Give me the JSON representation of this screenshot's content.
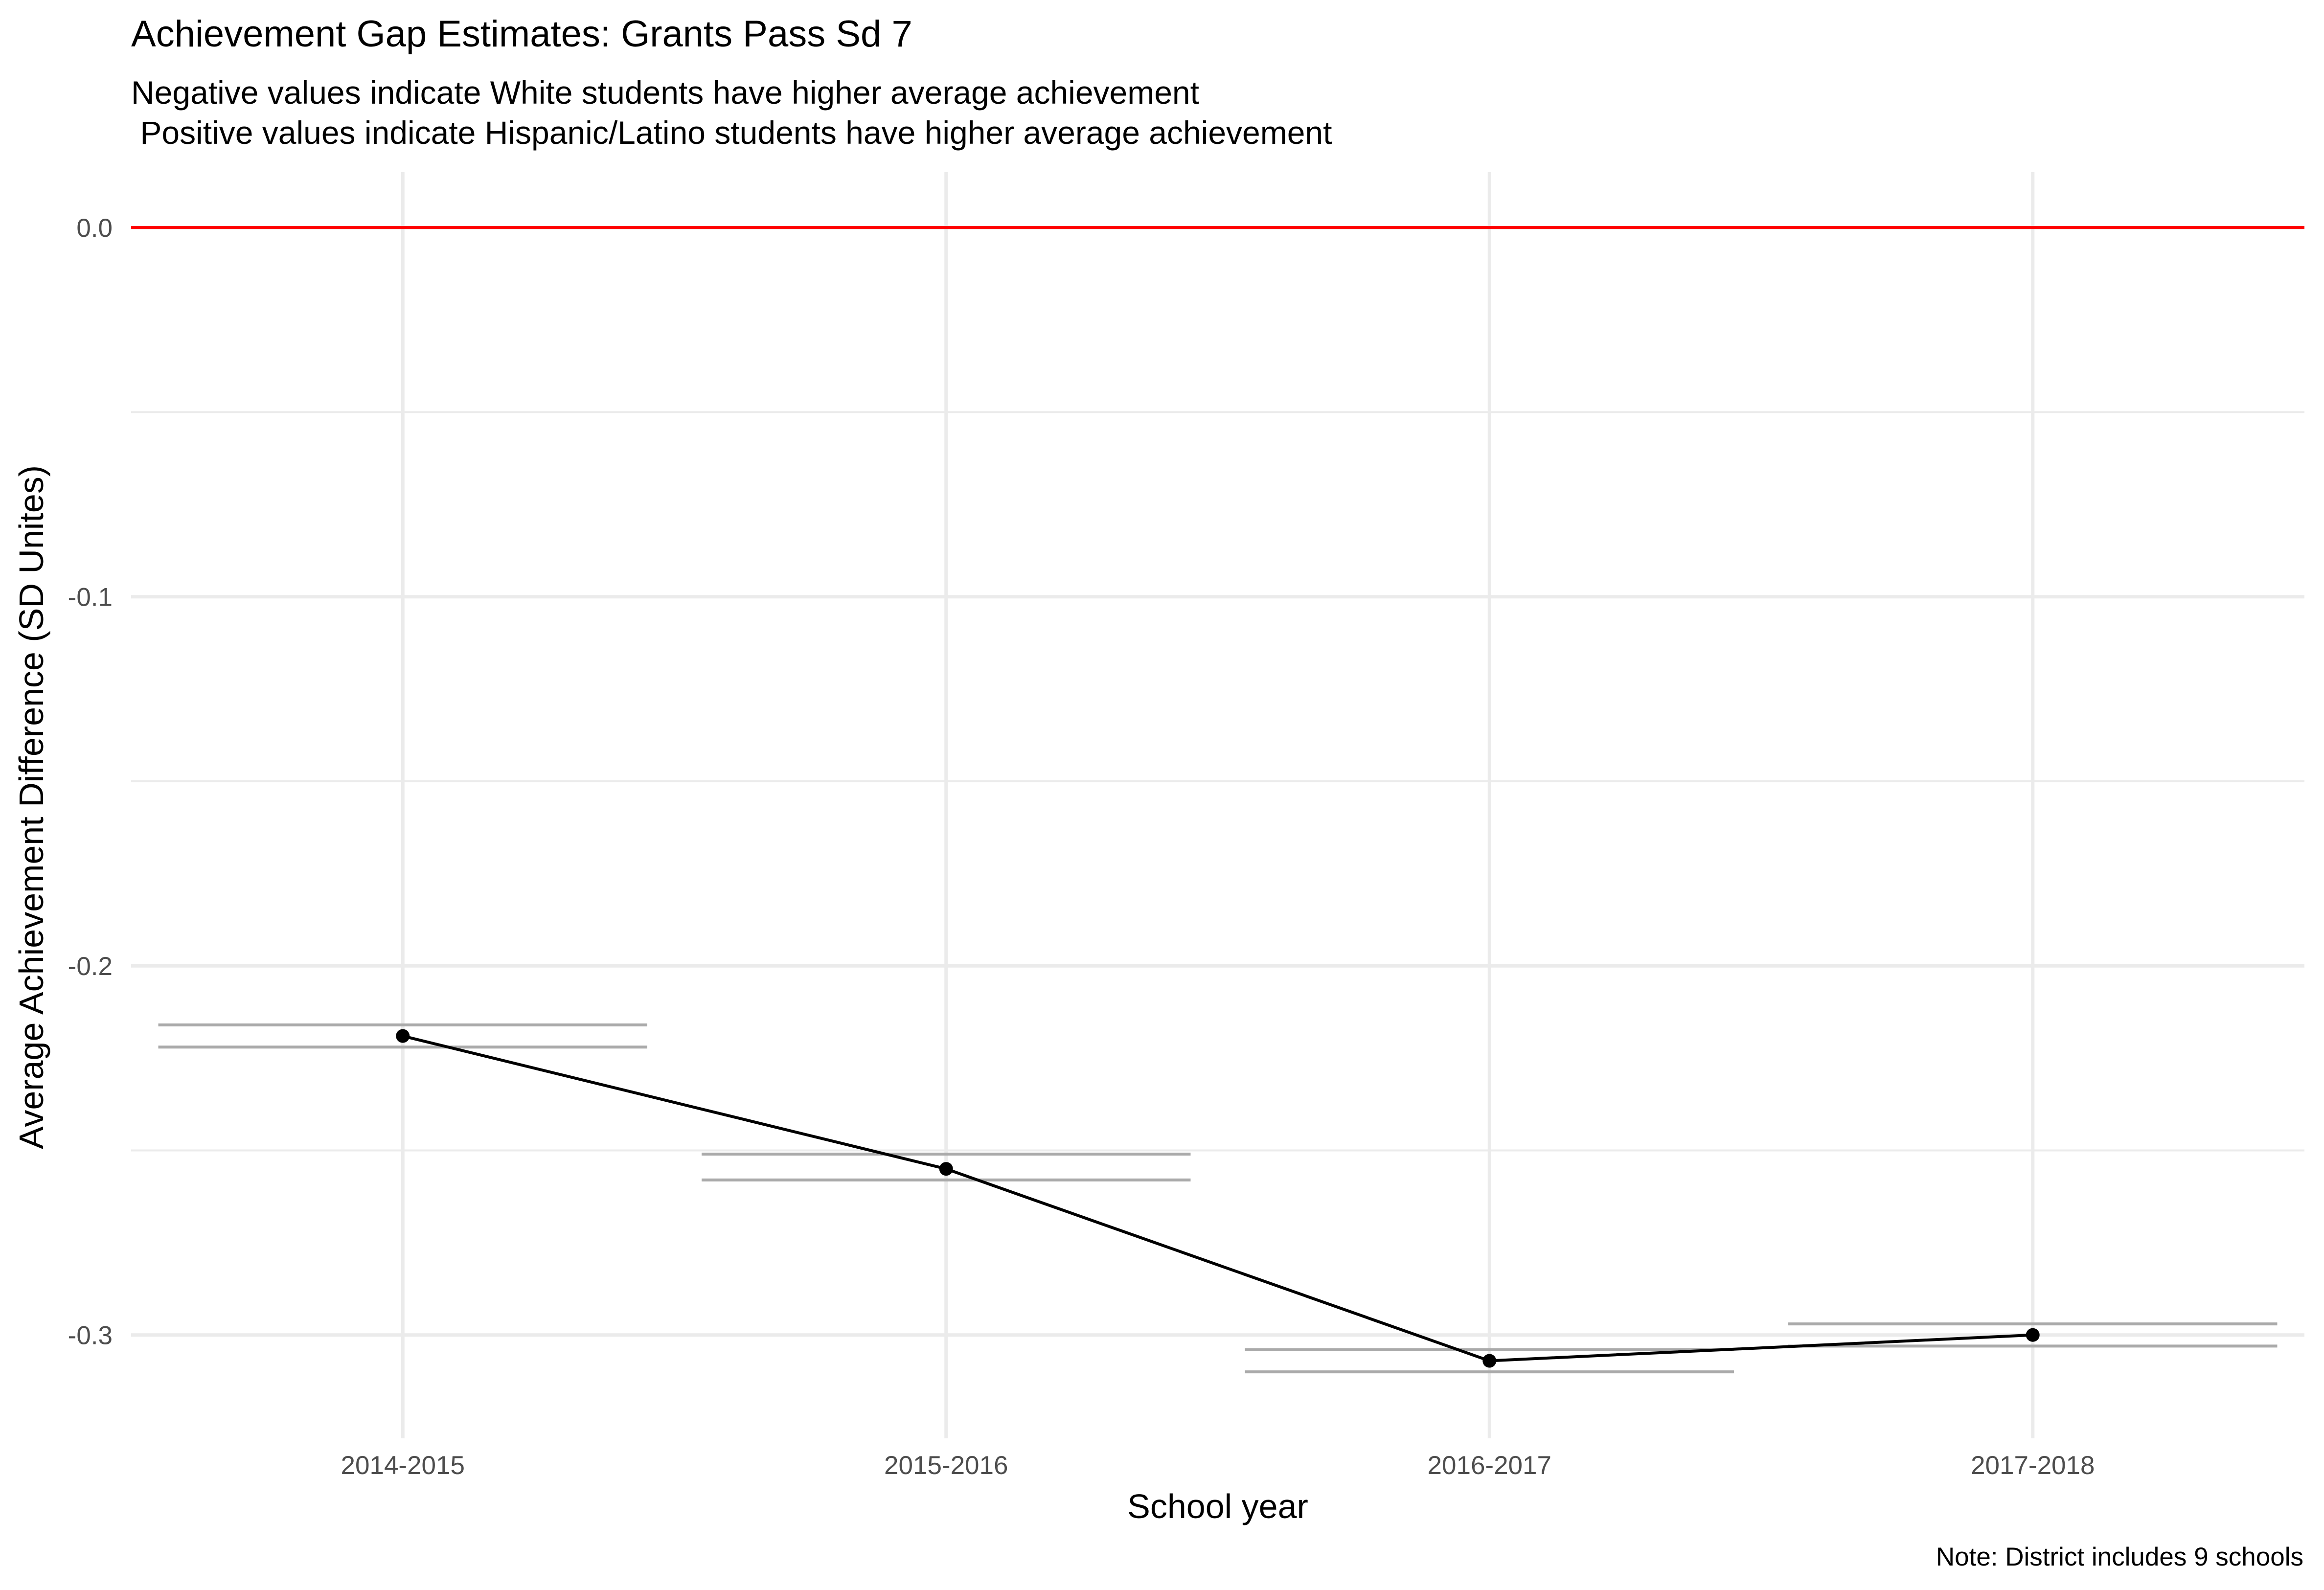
{
  "chart_data": {
    "type": "line",
    "title": "Achievement Gap Estimates: Grants Pass Sd 7",
    "subtitle_lines": [
      "Negative values indicate White students have higher average achievement",
      " Positive values indicate Hispanic/Latino students have higher average achievement"
    ],
    "xlabel": "School year",
    "ylabel": "Average Achievement Difference (SD Unites)",
    "caption": "Note: District includes 9 schools",
    "categories": [
      "2014-2015",
      "2015-2016",
      "2016-2017",
      "2017-2018"
    ],
    "series": [
      {
        "values": [
          -0.219,
          -0.255,
          -0.307,
          -0.3
        ]
      }
    ],
    "interval_bounds": [
      {
        "upper": -0.216,
        "lower": -0.222
      },
      {
        "upper": -0.251,
        "lower": -0.258
      },
      {
        "upper": -0.304,
        "lower": -0.31
      },
      {
        "upper": -0.297,
        "lower": -0.303
      }
    ],
    "reference_line": {
      "y": 0.0,
      "color": "#ff0000"
    },
    "y_ticks": [
      0.0,
      -0.1,
      -0.2,
      -0.3
    ],
    "y_tick_labels": [
      "0.0",
      "-0.1",
      "-0.2",
      "-0.3"
    ],
    "ylim": [
      -0.328,
      0.015
    ],
    "grid": true,
    "colors": {
      "line": "#000000",
      "interval": "#aaaaaa",
      "grid": "#ebebeb",
      "reference": "#ff0000"
    }
  }
}
